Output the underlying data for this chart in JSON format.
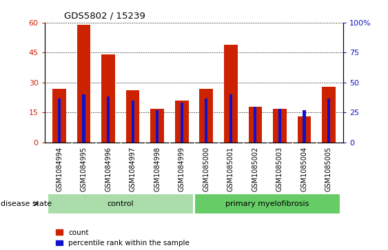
{
  "title": "GDS5802 / 15239",
  "samples": [
    "GSM1084994",
    "GSM1084995",
    "GSM1084996",
    "GSM1084997",
    "GSM1084998",
    "GSM1084999",
    "GSM1085000",
    "GSM1085001",
    "GSM1085002",
    "GSM1085003",
    "GSM1085004",
    "GSM1085005"
  ],
  "count": [
    27,
    59,
    44,
    26,
    17,
    21,
    27,
    49,
    18,
    17,
    13,
    28
  ],
  "percentile_left_scale": [
    22,
    24,
    23,
    21,
    16,
    20,
    22,
    24,
    18,
    17,
    16,
    22
  ],
  "count_color": "#cc2200",
  "percentile_color": "#1111cc",
  "left_ylim": [
    0,
    60
  ],
  "right_ylim": [
    0,
    100
  ],
  "left_yticks": [
    0,
    15,
    30,
    45,
    60
  ],
  "right_yticks": [
    0,
    25,
    50,
    75,
    100
  ],
  "right_yticklabels": [
    "0",
    "25",
    "50",
    "75",
    "100%"
  ],
  "groups": [
    {
      "label": "control",
      "start": 0,
      "end": 6,
      "color": "#aaddaa"
    },
    {
      "label": "primary myelofibrosis",
      "start": 6,
      "end": 12,
      "color": "#66cc66"
    }
  ],
  "disease_state_label": "disease state",
  "legend_count_label": "count",
  "legend_percentile_label": "percentile rank within the sample",
  "bar_width": 0.55,
  "thin_bar_width": 0.12,
  "xtick_bg": "#cccccc",
  "plot_bg": "#ffffff"
}
